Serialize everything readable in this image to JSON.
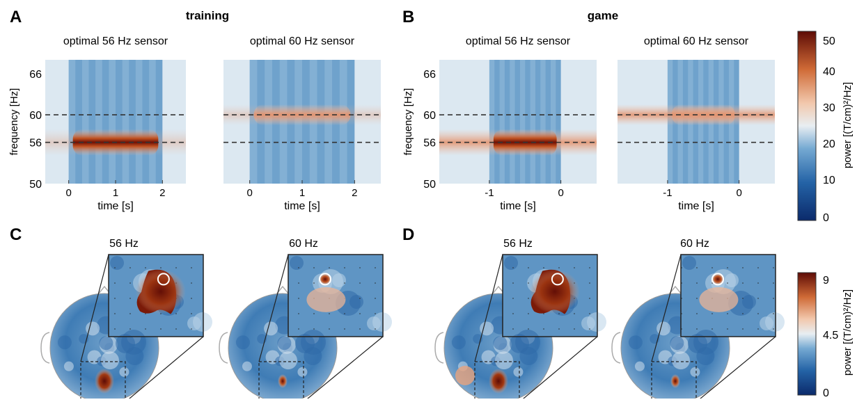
{
  "panel_letters": {
    "A": "A",
    "B": "B",
    "C": "C",
    "D": "D"
  },
  "section_titles": {
    "training": "training",
    "game": "game"
  },
  "colors": {
    "scale": [
      "#0b2a6b",
      "#1f5c9f",
      "#4f8fc2",
      "#a9c9e3",
      "#e9eef2",
      "#f2c9b0",
      "#d97f4f",
      "#b5461b",
      "#6b0f07"
    ],
    "baseline_fill": "#dce8f1",
    "dashed_line": "#333333",
    "axes_text": "#111111"
  },
  "colorbar_top": {
    "ticks": [
      "50",
      "40",
      "30",
      "20",
      "10",
      "0"
    ],
    "label": "power [(T/cm)²/Hz]"
  },
  "colorbar_bottom": {
    "ticks": [
      "9",
      "4.5",
      "0"
    ],
    "label": "power [(T/cm)²/Hz]"
  },
  "topo_labels": {
    "C56": "56 Hz",
    "C60": "60 Hz",
    "D56": "56 Hz",
    "D60": "60 Hz"
  },
  "chart_data": [
    {
      "type": "heatmap",
      "panel": "A",
      "title": "optimal 56 Hz sensor",
      "xlabel": "time [s]",
      "ylabel": "frequency [Hz]",
      "xlim": [
        -0.5,
        2.5
      ],
      "ylim": [
        50,
        68
      ],
      "xticks": [
        "0",
        "1",
        "2"
      ],
      "xtick_values": [
        0,
        1,
        2
      ],
      "yticks": [
        "50",
        "56",
        "60",
        "66"
      ],
      "ytick_values": [
        50,
        56,
        60,
        66
      ],
      "dashed_lines_hz": [
        56,
        60
      ],
      "active_window": [
        0,
        2
      ],
      "peak_freq_hz": 56,
      "peak_power": 50,
      "clim": [
        0,
        50
      ]
    },
    {
      "type": "heatmap",
      "panel": "A",
      "title": "optimal 60 Hz sensor",
      "xlabel": "time [s]",
      "xlim": [
        -0.5,
        2.5
      ],
      "ylim": [
        50,
        68
      ],
      "xticks": [
        "0",
        "1",
        "2"
      ],
      "xtick_values": [
        0,
        1,
        2
      ],
      "dashed_lines_hz": [
        56,
        60
      ],
      "active_window": [
        0,
        2
      ],
      "peak_freq_hz": 60,
      "peak_power": 35,
      "clim": [
        0,
        50
      ]
    },
    {
      "type": "heatmap",
      "panel": "B",
      "title": "optimal 56 Hz sensor",
      "xlabel": "time [s]",
      "ylabel": "frequency [Hz]",
      "xlim": [
        -1.7,
        0.5
      ],
      "ylim": [
        50,
        68
      ],
      "xticks": [
        "-1",
        "0"
      ],
      "xtick_values": [
        -1,
        0
      ],
      "yticks": [
        "50",
        "56",
        "60",
        "66"
      ],
      "ytick_values": [
        50,
        56,
        60,
        66
      ],
      "dashed_lines_hz": [
        56,
        60
      ],
      "active_window": [
        -1,
        0
      ],
      "peak_freq_hz": 56,
      "peak_power": 50,
      "clim": [
        0,
        50
      ]
    },
    {
      "type": "heatmap",
      "panel": "B",
      "title": "optimal 60 Hz sensor",
      "xlabel": "time [s]",
      "xlim": [
        -1.7,
        0.5
      ],
      "ylim": [
        50,
        68
      ],
      "xticks": [
        "-1",
        "0"
      ],
      "xtick_values": [
        -1,
        0
      ],
      "dashed_lines_hz": [
        56,
        60
      ],
      "active_window": [
        -1,
        0
      ],
      "peak_freq_hz": 60,
      "peak_power": 32,
      "clim": [
        0,
        50
      ]
    }
  ]
}
